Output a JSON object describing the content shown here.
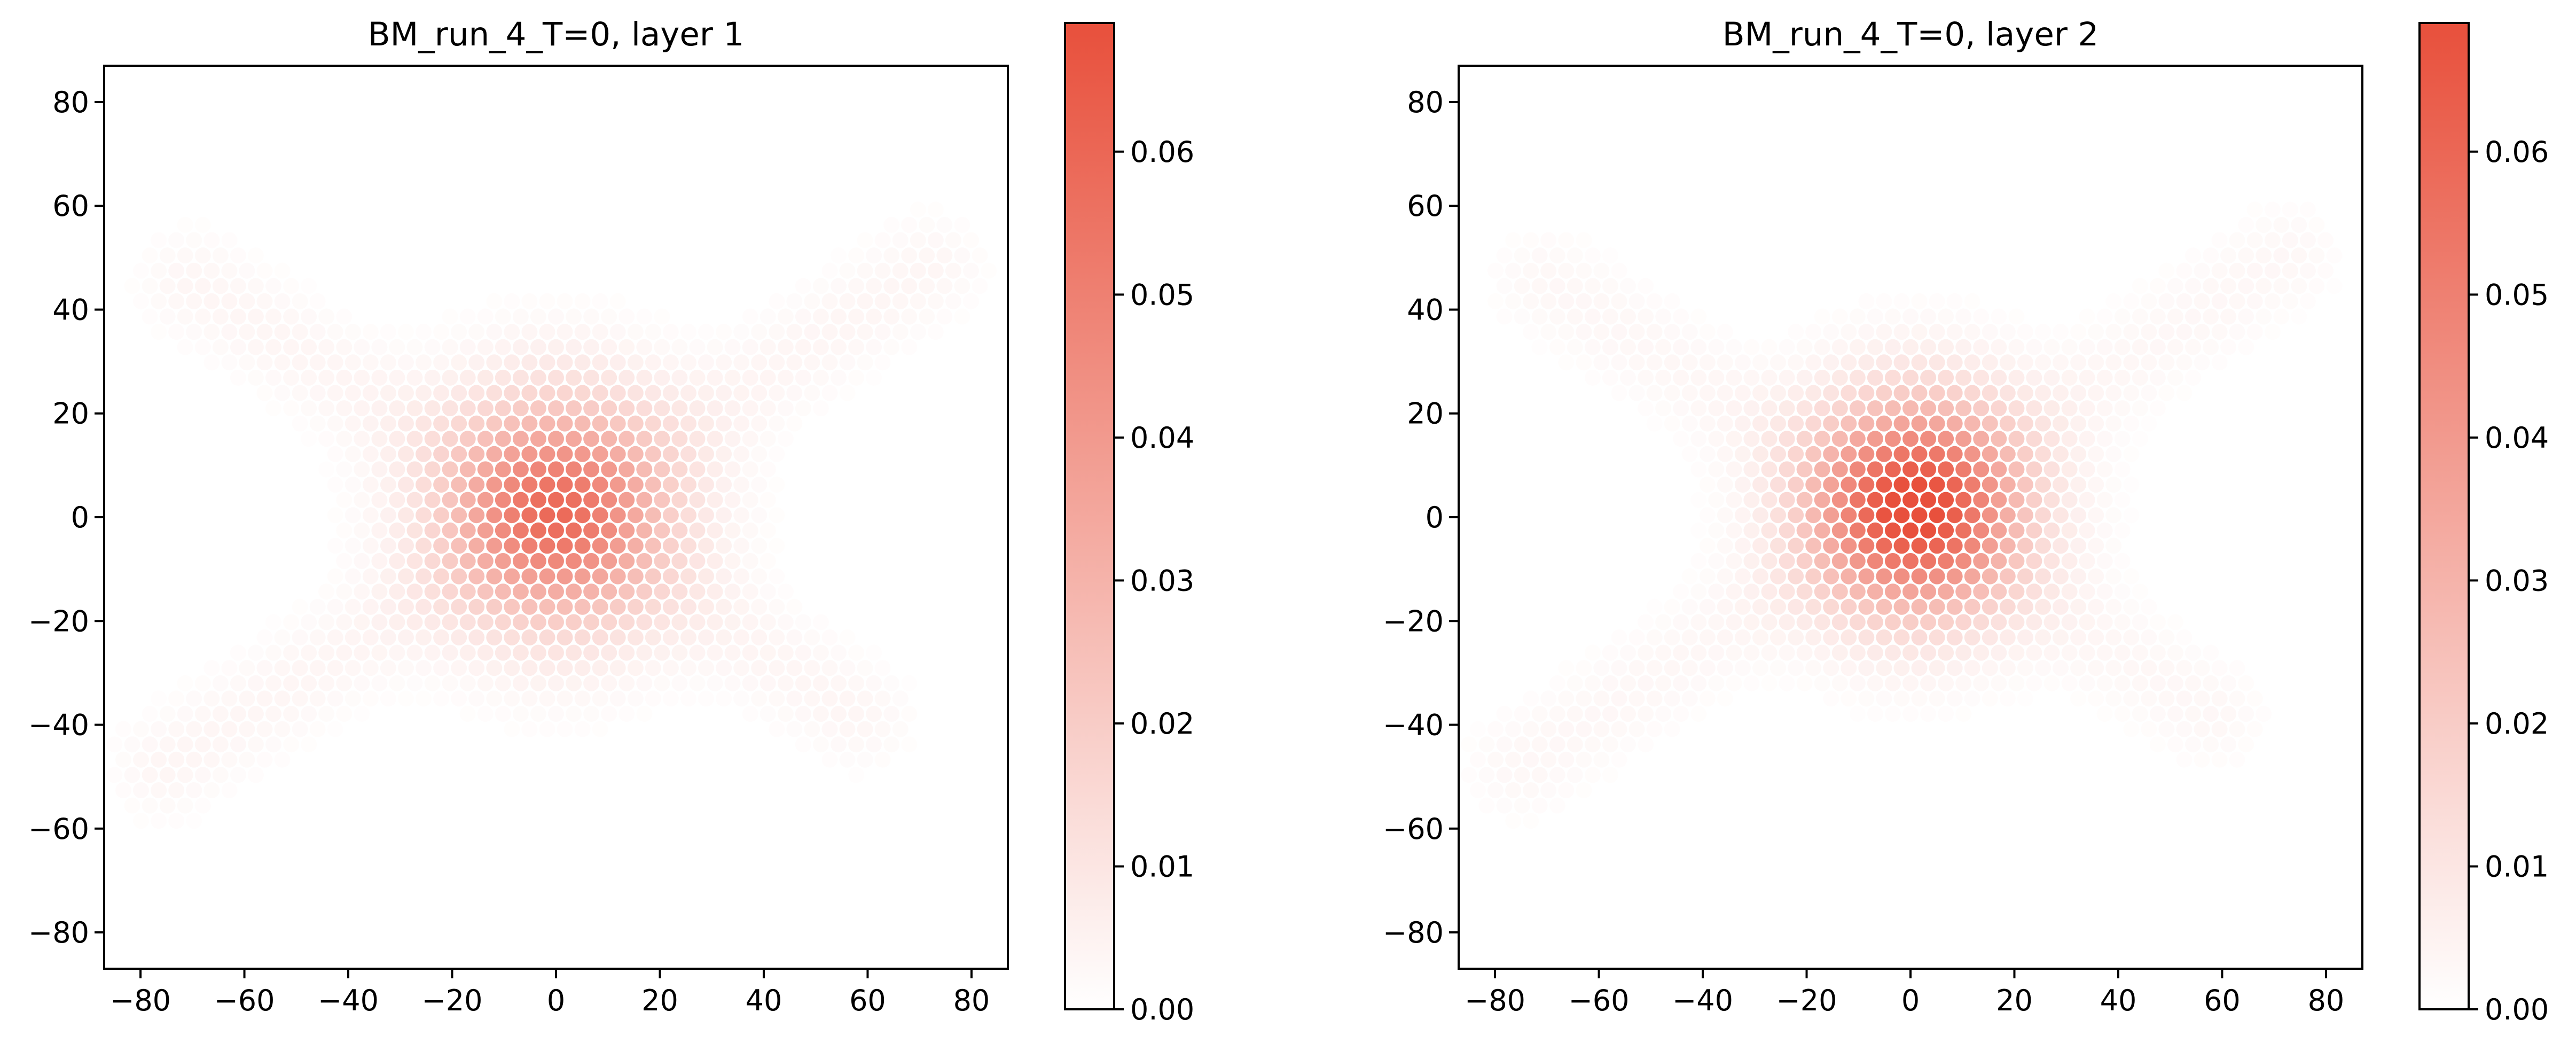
{
  "chart_data": [
    {
      "type": "heatmap",
      "title": "BM_run_4_T=0, layer 1",
      "xlabel": "",
      "ylabel": "",
      "xlim": [
        -87,
        87
      ],
      "ylim": [
        -87,
        87
      ],
      "xticks": [
        -80,
        -60,
        -40,
        -20,
        0,
        20,
        40,
        60,
        80
      ],
      "yticks": [
        -80,
        -60,
        -40,
        -20,
        0,
        20,
        40,
        60,
        80
      ],
      "grid": false,
      "colorbar": {
        "range": [
          0,
          0.069
        ],
        "ticks": [
          0.0,
          0.01,
          0.02,
          0.03,
          0.04,
          0.05,
          0.06
        ],
        "tick_labels": [
          "0.00",
          "0.01",
          "0.02",
          "0.03",
          "0.04",
          "0.05",
          "0.06"
        ],
        "cmap": [
          "#ffffff",
          "#e8503c"
        ]
      },
      "field": {
        "pattern": "hexagonal lattice",
        "central_peak": {
          "x": 0,
          "y": 1,
          "amplitude": 0.052,
          "sigma": 15
        },
        "arms": [
          {
            "from": [
              -75,
              -48
            ],
            "to": [
              72,
              48
            ],
            "amplitude": 0.0035
          },
          {
            "from": [
              -70,
              45
            ],
            "to": [
              58,
              -38
            ],
            "amplitude": 0.0035
          }
        ]
      }
    },
    {
      "type": "heatmap",
      "title": "BM_run_4_T=0, layer 2",
      "xlabel": "",
      "ylabel": "",
      "xlim": [
        -87,
        87
      ],
      "ylim": [
        -87,
        87
      ],
      "xticks": [
        -80,
        -60,
        -40,
        -20,
        0,
        20,
        40,
        60,
        80
      ],
      "yticks": [
        -80,
        -60,
        -40,
        -20,
        0,
        20,
        40,
        60,
        80
      ],
      "grid": false,
      "colorbar": {
        "range": [
          0,
          0.069
        ],
        "ticks": [
          0.0,
          0.01,
          0.02,
          0.03,
          0.04,
          0.05,
          0.06
        ],
        "tick_labels": [
          "0.00",
          "0.01",
          "0.02",
          "0.03",
          "0.04",
          "0.05",
          "0.06"
        ],
        "cmap": [
          "#ffffff",
          "#e8503c"
        ]
      },
      "field": {
        "pattern": "hexagonal lattice",
        "central_peak": {
          "x": 1,
          "y": 2,
          "amplitude": 0.068,
          "sigma": 14
        },
        "arms": [
          {
            "from": [
              -75,
              -48
            ],
            "to": [
              72,
              50
            ],
            "amplitude": 0.003
          },
          {
            "from": [
              -70,
              45
            ],
            "to": [
              58,
              -38
            ],
            "amplitude": 0.003
          }
        ]
      }
    }
  ]
}
